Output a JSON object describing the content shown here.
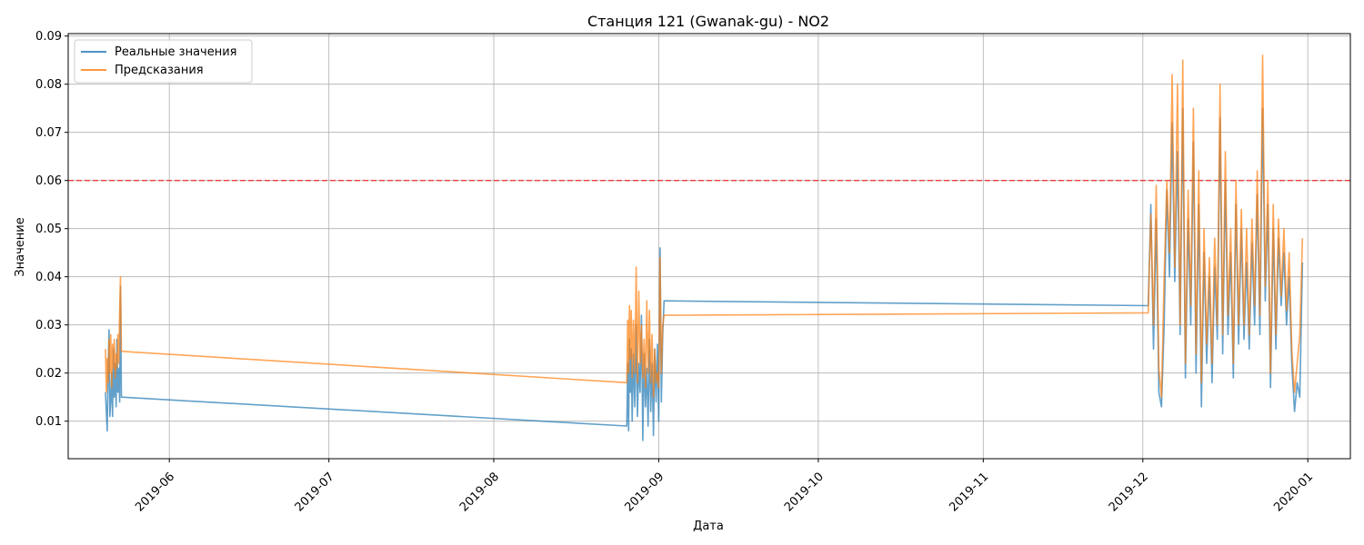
{
  "chart_data": {
    "type": "line",
    "title": "Станция 121 (Gwanak-gu) - NO2",
    "xlabel": "Дата",
    "ylabel": "Значение",
    "x_range": [
      "2019-05-13",
      "2020-01-09"
    ],
    "ylim": [
      0.0022,
      0.0905
    ],
    "x_ticks": [
      "2019-06-01",
      "2019-07-01",
      "2019-08-01",
      "2019-09-01",
      "2019-10-01",
      "2019-11-01",
      "2019-12-01",
      "2020-01-01"
    ],
    "x_tick_labels": [
      "2019-06",
      "2019-07",
      "2019-08",
      "2019-09",
      "2019-10",
      "2019-11",
      "2019-12",
      "2020-01"
    ],
    "y_ticks": [
      0.01,
      0.02,
      0.03,
      0.04,
      0.05,
      0.06,
      0.07,
      0.08,
      0.09
    ],
    "y_tick_labels": [
      "0.01",
      "0.02",
      "0.03",
      "0.04",
      "0.05",
      "0.06",
      "0.07",
      "0.08",
      "0.09"
    ],
    "grid": true,
    "legend_position": "top-left",
    "threshold": {
      "value": 0.06,
      "color": "#ff0000",
      "style": "dashed"
    },
    "series": [
      {
        "name": "Реальные значения",
        "color": "#1f77b4",
        "points": [
          [
            "2019-05-20 00:00",
            0.016
          ],
          [
            "2019-05-20 04:00",
            0.012
          ],
          [
            "2019-05-20 08:00",
            0.008
          ],
          [
            "2019-05-20 12:00",
            0.02
          ],
          [
            "2019-05-20 16:00",
            0.029
          ],
          [
            "2019-05-20 20:00",
            0.011
          ],
          [
            "2019-05-21 00:00",
            0.014
          ],
          [
            "2019-05-21 04:00",
            0.02
          ],
          [
            "2019-05-21 08:00",
            0.011
          ],
          [
            "2019-05-21 12:00",
            0.025
          ],
          [
            "2019-05-21 16:00",
            0.015
          ],
          [
            "2019-05-21 20:00",
            0.022
          ],
          [
            "2019-05-22 00:00",
            0.013
          ],
          [
            "2019-05-22 04:00",
            0.027
          ],
          [
            "2019-05-22 08:00",
            0.016
          ],
          [
            "2019-05-22 12:00",
            0.021
          ],
          [
            "2019-05-22 16:00",
            0.014
          ],
          [
            "2019-05-22 20:00",
            0.038
          ],
          [
            "2019-05-23 00:00",
            0.015
          ],
          [
            "2019-08-26 00:00",
            0.009
          ],
          [
            "2019-08-26 04:00",
            0.022
          ],
          [
            "2019-08-26 08:00",
            0.008
          ],
          [
            "2019-08-26 12:00",
            0.027
          ],
          [
            "2019-08-26 16:00",
            0.016
          ],
          [
            "2019-08-26 20:00",
            0.025
          ],
          [
            "2019-08-27 00:00",
            0.01
          ],
          [
            "2019-08-27 06:00",
            0.024
          ],
          [
            "2019-08-27 12:00",
            0.013
          ],
          [
            "2019-08-27 18:00",
            0.03
          ],
          [
            "2019-08-28 00:00",
            0.011
          ],
          [
            "2019-08-28 06:00",
            0.022
          ],
          [
            "2019-08-28 12:00",
            0.016
          ],
          [
            "2019-08-28 18:00",
            0.032
          ],
          [
            "2019-08-29 00:00",
            0.006
          ],
          [
            "2019-08-29 06:00",
            0.024
          ],
          [
            "2019-08-29 12:00",
            0.013
          ],
          [
            "2019-08-29 18:00",
            0.021
          ],
          [
            "2019-08-30 00:00",
            0.009
          ],
          [
            "2019-08-30 06:00",
            0.027
          ],
          [
            "2019-08-30 12:00",
            0.012
          ],
          [
            "2019-08-30 18:00",
            0.022
          ],
          [
            "2019-08-31 00:00",
            0.007
          ],
          [
            "2019-08-31 06:00",
            0.025
          ],
          [
            "2019-08-31 12:00",
            0.014
          ],
          [
            "2019-08-31 18:00",
            0.026
          ],
          [
            "2019-09-01 00:00",
            0.01
          ],
          [
            "2019-09-01 06:00",
            0.046
          ],
          [
            "2019-09-01 12:00",
            0.014
          ],
          [
            "2019-09-01 18:00",
            0.028
          ],
          [
            "2019-09-02 00:00",
            0.035
          ],
          [
            "2019-12-02 00:00",
            0.034
          ],
          [
            "2019-12-02 12:00",
            0.055
          ],
          [
            "2019-12-03 00:00",
            0.025
          ],
          [
            "2019-12-03 12:00",
            0.052
          ],
          [
            "2019-12-04 00:00",
            0.016
          ],
          [
            "2019-12-04 12:00",
            0.013
          ],
          [
            "2019-12-05 00:00",
            0.03
          ],
          [
            "2019-12-05 12:00",
            0.058
          ],
          [
            "2019-12-06 00:00",
            0.04
          ],
          [
            "2019-12-06 12:00",
            0.072
          ],
          [
            "2019-12-07 00:00",
            0.039
          ],
          [
            "2019-12-07 12:00",
            0.066
          ],
          [
            "2019-12-08 00:00",
            0.028
          ],
          [
            "2019-12-08 12:00",
            0.075
          ],
          [
            "2019-12-09 00:00",
            0.019
          ],
          [
            "2019-12-09 12:00",
            0.052
          ],
          [
            "2019-12-10 00:00",
            0.03
          ],
          [
            "2019-12-10 12:00",
            0.068
          ],
          [
            "2019-12-11 00:00",
            0.02
          ],
          [
            "2019-12-11 12:00",
            0.055
          ],
          [
            "2019-12-12 00:00",
            0.013
          ],
          [
            "2019-12-12 12:00",
            0.045
          ],
          [
            "2019-12-13 00:00",
            0.022
          ],
          [
            "2019-12-13 12:00",
            0.04
          ],
          [
            "2019-12-14 00:00",
            0.018
          ],
          [
            "2019-12-14 12:00",
            0.042
          ],
          [
            "2019-12-15 00:00",
            0.027
          ],
          [
            "2019-12-15 12:00",
            0.073
          ],
          [
            "2019-12-16 00:00",
            0.024
          ],
          [
            "2019-12-16 12:00",
            0.06
          ],
          [
            "2019-12-17 00:00",
            0.028
          ],
          [
            "2019-12-17 12:00",
            0.045
          ],
          [
            "2019-12-18 00:00",
            0.019
          ],
          [
            "2019-12-18 12:00",
            0.055
          ],
          [
            "2019-12-19 00:00",
            0.026
          ],
          [
            "2019-12-19 12:00",
            0.05
          ],
          [
            "2019-12-20 00:00",
            0.027
          ],
          [
            "2019-12-20 12:00",
            0.043
          ],
          [
            "2019-12-21 00:00",
            0.025
          ],
          [
            "2019-12-21 12:00",
            0.047
          ],
          [
            "2019-12-22 00:00",
            0.03
          ],
          [
            "2019-12-22 12:00",
            0.057
          ],
          [
            "2019-12-23 00:00",
            0.028
          ],
          [
            "2019-12-23 12:00",
            0.075
          ],
          [
            "2019-12-24 00:00",
            0.035
          ],
          [
            "2019-12-24 12:00",
            0.055
          ],
          [
            "2019-12-25 00:00",
            0.017
          ],
          [
            "2019-12-25 12:00",
            0.05
          ],
          [
            "2019-12-26 00:00",
            0.025
          ],
          [
            "2019-12-26 12:00",
            0.048
          ],
          [
            "2019-12-27 00:00",
            0.034
          ],
          [
            "2019-12-27 12:00",
            0.045
          ],
          [
            "2019-12-28 00:00",
            0.03
          ],
          [
            "2019-12-28 12:00",
            0.04
          ],
          [
            "2019-12-29 00:00",
            0.022
          ],
          [
            "2019-12-29 12:00",
            0.012
          ],
          [
            "2019-12-30 00:00",
            0.018
          ],
          [
            "2019-12-30 12:00",
            0.015
          ],
          [
            "2019-12-31 00:00",
            0.043
          ]
        ]
      },
      {
        "name": "Предсказания",
        "color": "#ff7f0e",
        "points": [
          [
            "2019-05-20 00:00",
            0.025
          ],
          [
            "2019-05-20 04:00",
            0.016
          ],
          [
            "2019-05-20 08:00",
            0.023
          ],
          [
            "2019-05-20 12:00",
            0.018
          ],
          [
            "2019-05-20 16:00",
            0.027
          ],
          [
            "2019-05-20 20:00",
            0.02
          ],
          [
            "2019-05-21 00:00",
            0.028
          ],
          [
            "2019-05-21 04:00",
            0.017
          ],
          [
            "2019-05-21 08:00",
            0.026
          ],
          [
            "2019-05-21 12:00",
            0.021
          ],
          [
            "2019-05-21 16:00",
            0.027
          ],
          [
            "2019-05-21 20:00",
            0.019
          ],
          [
            "2019-05-22 00:00",
            0.024
          ],
          [
            "2019-05-22 04:00",
            0.021
          ],
          [
            "2019-05-22 08:00",
            0.028
          ],
          [
            "2019-05-22 12:00",
            0.022
          ],
          [
            "2019-05-22 16:00",
            0.033
          ],
          [
            "2019-05-22 20:00",
            0.04
          ],
          [
            "2019-05-23 00:00",
            0.0245
          ],
          [
            "2019-08-26 00:00",
            0.018
          ],
          [
            "2019-08-26 04:00",
            0.031
          ],
          [
            "2019-08-26 08:00",
            0.02
          ],
          [
            "2019-08-26 12:00",
            0.034
          ],
          [
            "2019-08-26 16:00",
            0.023
          ],
          [
            "2019-08-26 20:00",
            0.033
          ],
          [
            "2019-08-27 00:00",
            0.019
          ],
          [
            "2019-08-27 06:00",
            0.031
          ],
          [
            "2019-08-27 12:00",
            0.02
          ],
          [
            "2019-08-27 18:00",
            0.042
          ],
          [
            "2019-08-28 00:00",
            0.018
          ],
          [
            "2019-08-28 06:00",
            0.037
          ],
          [
            "2019-08-28 12:00",
            0.022
          ],
          [
            "2019-08-28 18:00",
            0.03
          ],
          [
            "2019-08-29 00:00",
            0.019
          ],
          [
            "2019-08-29 06:00",
            0.027
          ],
          [
            "2019-08-29 12:00",
            0.017
          ],
          [
            "2019-08-29 18:00",
            0.035
          ],
          [
            "2019-08-30 00:00",
            0.02
          ],
          [
            "2019-08-30 06:00",
            0.033
          ],
          [
            "2019-08-30 12:00",
            0.018
          ],
          [
            "2019-08-30 18:00",
            0.028
          ],
          [
            "2019-08-31 00:00",
            0.015
          ],
          [
            "2019-08-31 06:00",
            0.025
          ],
          [
            "2019-08-31 12:00",
            0.018
          ],
          [
            "2019-08-31 18:00",
            0.02
          ],
          [
            "2019-09-01 00:00",
            0.017
          ],
          [
            "2019-09-01 06:00",
            0.044
          ],
          [
            "2019-09-01 12:00",
            0.02
          ],
          [
            "2019-09-01 18:00",
            0.03
          ],
          [
            "2019-09-02 00:00",
            0.032
          ],
          [
            "2019-12-02 00:00",
            0.0325
          ],
          [
            "2019-12-02 12:00",
            0.053
          ],
          [
            "2019-12-03 00:00",
            0.03
          ],
          [
            "2019-12-03 12:00",
            0.059
          ],
          [
            "2019-12-04 00:00",
            0.021
          ],
          [
            "2019-12-04 12:00",
            0.015
          ],
          [
            "2019-12-05 00:00",
            0.04
          ],
          [
            "2019-12-05 12:00",
            0.06
          ],
          [
            "2019-12-06 00:00",
            0.045
          ],
          [
            "2019-12-06 12:00",
            0.082
          ],
          [
            "2019-12-07 00:00",
            0.042
          ],
          [
            "2019-12-07 12:00",
            0.08
          ],
          [
            "2019-12-08 00:00",
            0.03
          ],
          [
            "2019-12-08 12:00",
            0.085
          ],
          [
            "2019-12-09 00:00",
            0.022
          ],
          [
            "2019-12-09 12:00",
            0.058
          ],
          [
            "2019-12-10 00:00",
            0.034
          ],
          [
            "2019-12-10 12:00",
            0.075
          ],
          [
            "2019-12-11 00:00",
            0.024
          ],
          [
            "2019-12-11 12:00",
            0.062
          ],
          [
            "2019-12-12 00:00",
            0.018
          ],
          [
            "2019-12-12 12:00",
            0.05
          ],
          [
            "2019-12-13 00:00",
            0.026
          ],
          [
            "2019-12-13 12:00",
            0.044
          ],
          [
            "2019-12-14 00:00",
            0.022
          ],
          [
            "2019-12-14 12:00",
            0.048
          ],
          [
            "2019-12-15 00:00",
            0.03
          ],
          [
            "2019-12-15 12:00",
            0.08
          ],
          [
            "2019-12-16 00:00",
            0.028
          ],
          [
            "2019-12-16 12:00",
            0.066
          ],
          [
            "2019-12-17 00:00",
            0.032
          ],
          [
            "2019-12-17 12:00",
            0.05
          ],
          [
            "2019-12-18 00:00",
            0.022
          ],
          [
            "2019-12-18 12:00",
            0.06
          ],
          [
            "2019-12-19 00:00",
            0.03
          ],
          [
            "2019-12-19 12:00",
            0.054
          ],
          [
            "2019-12-20 00:00",
            0.03
          ],
          [
            "2019-12-20 12:00",
            0.05
          ],
          [
            "2019-12-21 00:00",
            0.028
          ],
          [
            "2019-12-21 12:00",
            0.052
          ],
          [
            "2019-12-22 00:00",
            0.034
          ],
          [
            "2019-12-22 12:00",
            0.062
          ],
          [
            "2019-12-23 00:00",
            0.032
          ],
          [
            "2019-12-23 12:00",
            0.086
          ],
          [
            "2019-12-24 00:00",
            0.038
          ],
          [
            "2019-12-24 12:00",
            0.06
          ],
          [
            "2019-12-25 00:00",
            0.02
          ],
          [
            "2019-12-25 12:00",
            0.055
          ],
          [
            "2019-12-26 00:00",
            0.028
          ],
          [
            "2019-12-26 12:00",
            0.052
          ],
          [
            "2019-12-27 00:00",
            0.036
          ],
          [
            "2019-12-27 12:00",
            0.05
          ],
          [
            "2019-12-28 00:00",
            0.033
          ],
          [
            "2019-12-28 12:00",
            0.045
          ],
          [
            "2019-12-29 00:00",
            0.025
          ],
          [
            "2019-12-29 12:00",
            0.016
          ],
          [
            "2019-12-30 00:00",
            0.022
          ],
          [
            "2019-12-30 12:00",
            0.028
          ],
          [
            "2019-12-31 00:00",
            0.048
          ]
        ]
      }
    ]
  }
}
